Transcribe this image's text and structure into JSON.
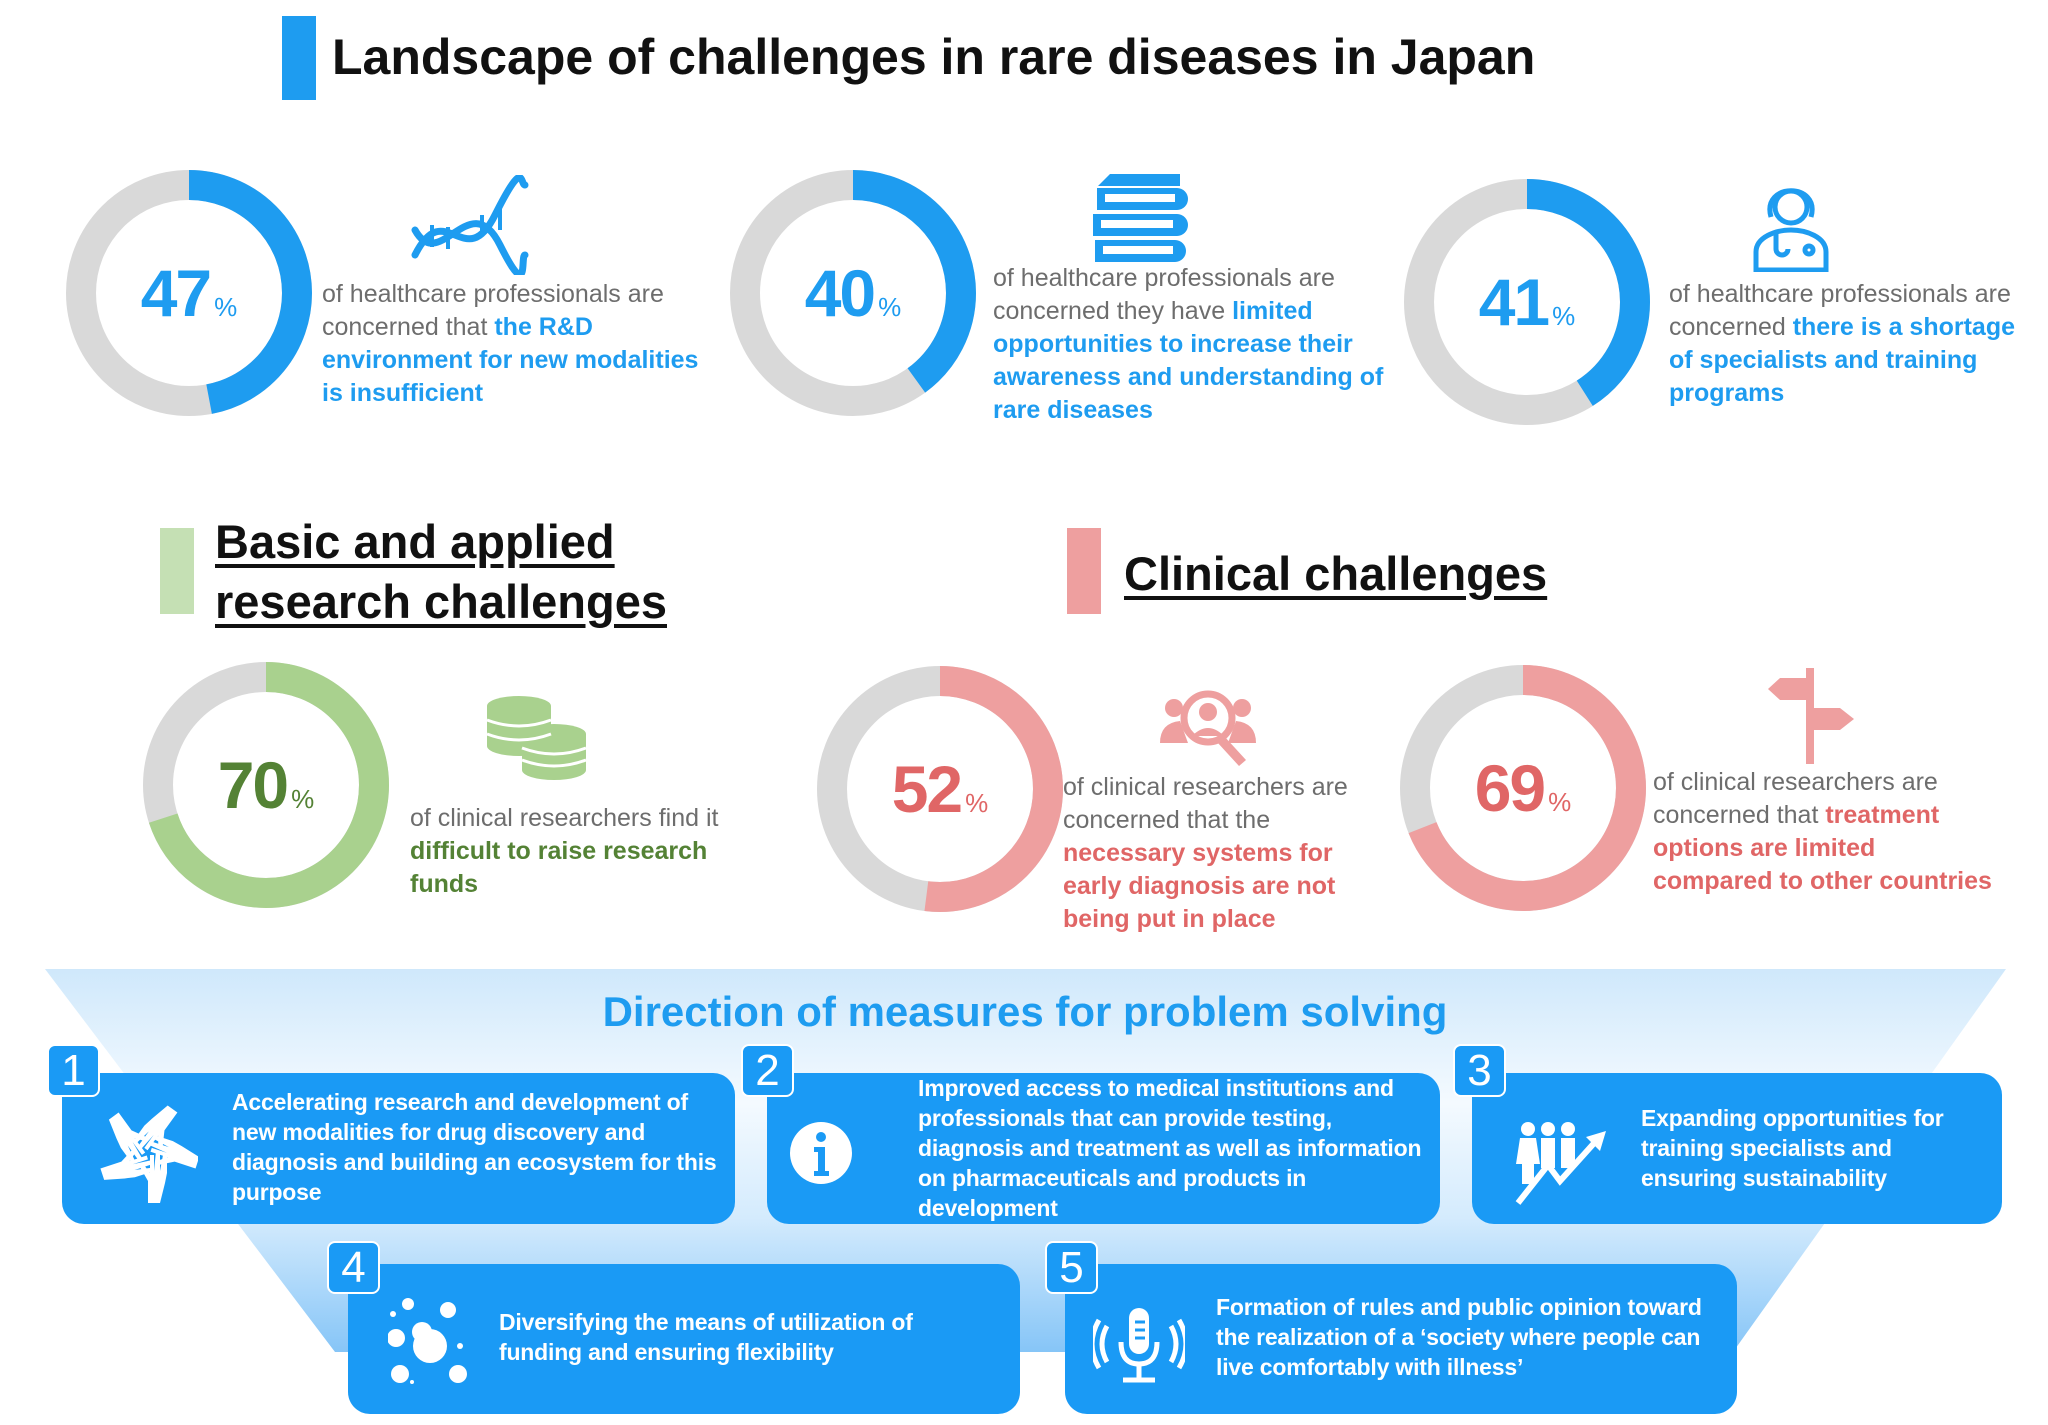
{
  "title": "Landscape of challenges in rare diseases in Japan",
  "colors": {
    "blue": "#1e9cf0",
    "gray": "#d9d9d9",
    "green": "#a9d18e",
    "green_text": "#548235",
    "pink": "#ee9f9f",
    "pink_text": "#e06666",
    "box": "#1a9af5"
  },
  "top_stats": [
    {
      "value": 47,
      "pct": "%",
      "prefix": "of healthcare professionals are concerned that ",
      "highlight": "the R&D environment for new modalities is insufficient",
      "icon": "dna-icon"
    },
    {
      "value": 40,
      "pct": "%",
      "prefix": "of healthcare professionals are concerned they have ",
      "highlight": "limited opportunities to increase their awareness and understanding of rare diseases",
      "icon": "books-icon"
    },
    {
      "value": 41,
      "pct": "%",
      "prefix": "of healthcare professionals are concerned ",
      "highlight": "there is a shortage of specialists and training programs",
      "icon": "doctor-icon"
    }
  ],
  "research": {
    "heading_line1": "Basic and applied",
    "heading_line2": "research challenges",
    "stat": {
      "value": 70,
      "pct": "%",
      "prefix": "of clinical researchers find it ",
      "highlight": "difficult to raise research funds",
      "icon": "coins-icon"
    }
  },
  "clinical": {
    "heading": "Clinical challenges",
    "stats": [
      {
        "value": 52,
        "pct": "%",
        "prefix": "of clinical researchers are concerned that the ",
        "highlight": "necessary systems for early diagnosis are not being put in place",
        "icon": "people-search-icon"
      },
      {
        "value": 69,
        "pct": "%",
        "prefix": "of clinical researchers are concerned that ",
        "highlight": "treatment options are limited compared to other countries",
        "icon": "signpost-icon"
      }
    ]
  },
  "measures": {
    "title": "Direction of measures for problem solving",
    "items": [
      {
        "num": "1",
        "text": "Accelerating research and development of new modalities for drug discovery and diagnosis and building an ecosystem for this purpose",
        "icon": "hands-icon"
      },
      {
        "num": "2",
        "text": "Improved access to medical institutions and professionals that can provide testing, diagnosis and treatment as well as information on pharmaceuticals and products in development",
        "icon": "info-icon"
      },
      {
        "num": "3",
        "text": "Expanding opportunities for training specialists and ensuring sustainability",
        "icon": "people-growth-icon"
      },
      {
        "num": "4",
        "text": "Diversifying the means of utilization of funding and ensuring flexibility",
        "icon": "bubbles-icon"
      },
      {
        "num": "5",
        "text": "Formation of rules and public opinion toward the realization of a ‘society where people can live comfortably with illness’",
        "icon": "microphone-icon"
      }
    ]
  }
}
